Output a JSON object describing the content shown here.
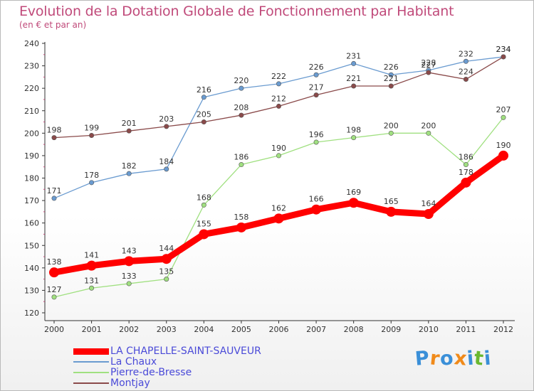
{
  "chart_data": {
    "type": "line",
    "title": "Evolution de la Dotation Globale de Fonctionnement par Habitant",
    "subtitle": "(en € et par an)",
    "x": [
      "2000",
      "2001",
      "2002",
      "2003",
      "2004",
      "2005",
      "2006",
      "2007",
      "2008",
      "2009",
      "2010",
      "2011",
      "2012"
    ],
    "ylim": [
      120,
      240
    ],
    "yticks": [
      120,
      130,
      140,
      150,
      160,
      170,
      180,
      190,
      200,
      210,
      220,
      230,
      240
    ],
    "grid": false,
    "series": [
      {
        "name": "LA CHAPELLE-SAINT-SAUVEUR",
        "color": "#ff0000",
        "emphasis": true,
        "values": [
          138,
          141,
          143,
          144,
          155,
          158,
          162,
          166,
          169,
          165,
          164,
          178,
          190
        ]
      },
      {
        "name": "La Chaux",
        "color": "#6a9bd0",
        "emphasis": false,
        "values": [
          171,
          178,
          182,
          184,
          216,
          220,
          222,
          226,
          231,
          226,
          228,
          232,
          234
        ]
      },
      {
        "name": "Pierre-de-Bresse",
        "color": "#a0e080",
        "emphasis": false,
        "values": [
          127,
          131,
          133,
          135,
          168,
          186,
          190,
          196,
          198,
          200,
          200,
          186,
          207
        ]
      },
      {
        "name": "Montjay",
        "color": "#8a4a4a",
        "emphasis": false,
        "values": [
          198,
          199,
          201,
          203,
          205,
          208,
          212,
          217,
          221,
          221,
          227,
          224,
          234
        ]
      }
    ]
  },
  "logo": {
    "letters": [
      "P",
      "r",
      "o",
      "x",
      "i",
      "t",
      "i"
    ],
    "colors": [
      "#3a8fd8",
      "#f08a1a",
      "#3a8fd8",
      "#f08a1a",
      "#3a8fd8",
      "#6ab830",
      "#3a8fd8"
    ]
  }
}
